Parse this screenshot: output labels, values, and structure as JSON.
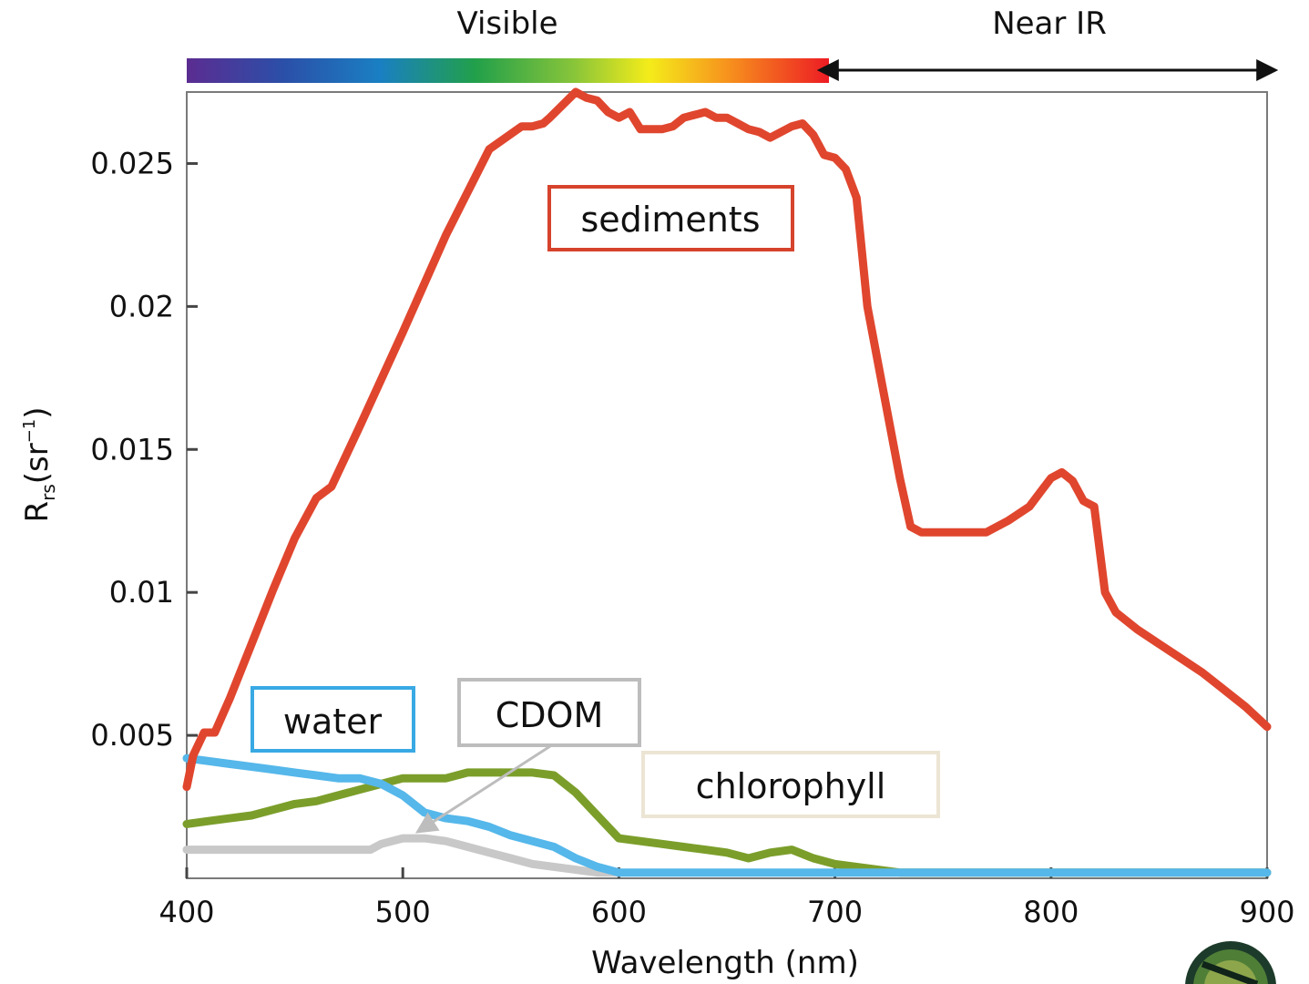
{
  "chart_data": {
    "type": "line",
    "xlabel": "Wavelength (nm)",
    "ylabel": {
      "main": "R",
      "sub": "rs",
      "unit_open": "(sr",
      "sup": "−1",
      "unit_close": ")"
    },
    "xlim": [
      400,
      900
    ],
    "ylim": [
      0,
      0.0275
    ],
    "x_ticks": [
      400,
      500,
      600,
      700,
      800,
      900
    ],
    "x_tick_labels": [
      "400",
      "500",
      "600",
      "700",
      "800",
      "900"
    ],
    "y_ticks": [
      0.005,
      0.01,
      0.015,
      0.02,
      0.025
    ],
    "y_tick_labels": [
      "0.005",
      "0.01",
      "0.015",
      "0.02",
      "0.025"
    ],
    "grid": false,
    "spectrum_band": {
      "label": "Visible",
      "from": 400,
      "to": 697
    },
    "nir_band": {
      "label": "Near IR",
      "from": 697,
      "to": 900
    },
    "series": [
      {
        "name": "sediments",
        "color": "#e0462e",
        "label_border": "#d6432c",
        "x": [
          400,
          403,
          408,
          413,
          420,
          430,
          440,
          450,
          460,
          467,
          480,
          500,
          520,
          540,
          555,
          560,
          565,
          568,
          572,
          580,
          585,
          590,
          595,
          600,
          605,
          610,
          615,
          620,
          625,
          630,
          640,
          645,
          650,
          655,
          660,
          665,
          670,
          680,
          685,
          690,
          695,
          700,
          705,
          710,
          715,
          720,
          725,
          730,
          735,
          740,
          745,
          750,
          760,
          770,
          780,
          790,
          795,
          800,
          805,
          810,
          815,
          820,
          825,
          830,
          840,
          850,
          860,
          870,
          880,
          890,
          900
        ],
        "y": [
          0.0032,
          0.0043,
          0.0051,
          0.0051,
          0.0063,
          0.0082,
          0.0101,
          0.0119,
          0.0133,
          0.0137,
          0.0158,
          0.0191,
          0.0225,
          0.0255,
          0.0263,
          0.0263,
          0.0264,
          0.0266,
          0.0269,
          0.0275,
          0.0273,
          0.0272,
          0.0268,
          0.0266,
          0.0268,
          0.0262,
          0.0262,
          0.0262,
          0.0263,
          0.0266,
          0.0268,
          0.0266,
          0.0266,
          0.0264,
          0.0262,
          0.0261,
          0.0259,
          0.0263,
          0.0264,
          0.026,
          0.0253,
          0.0252,
          0.0248,
          0.0238,
          0.02,
          0.018,
          0.016,
          0.014,
          0.0123,
          0.0121,
          0.0121,
          0.0121,
          0.0121,
          0.0121,
          0.0125,
          0.013,
          0.0135,
          0.014,
          0.0142,
          0.0139,
          0.0132,
          0.013,
          0.01,
          0.0093,
          0.0087,
          0.0082,
          0.0077,
          0.0072,
          0.0066,
          0.006,
          0.0053
        ]
      },
      {
        "name": "water",
        "color": "#55b7ea",
        "label_border": "#39a9e4",
        "x": [
          400,
          410,
          420,
          430,
          440,
          450,
          460,
          470,
          480,
          490,
          500,
          510,
          520,
          530,
          540,
          550,
          560,
          570,
          580,
          590,
          600,
          620,
          640,
          700,
          800,
          900
        ],
        "y": [
          0.0042,
          0.0041,
          0.004,
          0.0039,
          0.0038,
          0.0037,
          0.0036,
          0.0035,
          0.0035,
          0.0033,
          0.0029,
          0.0023,
          0.0021,
          0.002,
          0.0018,
          0.0015,
          0.0013,
          0.0011,
          0.0007,
          0.0004,
          0.0002,
          0.0002,
          0.0002,
          0.0002,
          0.0002,
          0.0002
        ]
      },
      {
        "name": "chlorophyll",
        "color": "#7b9e2a",
        "label_border": "#ece5d4",
        "x": [
          400,
          410,
          420,
          430,
          440,
          450,
          460,
          470,
          480,
          490,
          500,
          510,
          520,
          530,
          540,
          550,
          560,
          570,
          580,
          590,
          600,
          610,
          620,
          630,
          640,
          650,
          660,
          670,
          680,
          690,
          700,
          710,
          720,
          730,
          750,
          800,
          900
        ],
        "y": [
          0.0019,
          0.002,
          0.0021,
          0.0022,
          0.0024,
          0.0026,
          0.0027,
          0.0029,
          0.0031,
          0.0033,
          0.0035,
          0.0035,
          0.0035,
          0.0037,
          0.0037,
          0.0037,
          0.0037,
          0.0036,
          0.003,
          0.0022,
          0.0014,
          0.0013,
          0.0012,
          0.0011,
          0.001,
          0.0009,
          0.0007,
          0.0009,
          0.001,
          0.0007,
          0.0005,
          0.0004,
          0.0003,
          0.0002,
          0.0002,
          0.0002,
          0.0002
        ]
      },
      {
        "name": "CDOM",
        "color": "#c8c8c8",
        "label_border": "#bdbdbd",
        "x": [
          400,
          420,
          440,
          460,
          480,
          485,
          490,
          495,
          500,
          505,
          510,
          520,
          530,
          540,
          550,
          560,
          570,
          580,
          590,
          600
        ],
        "y": [
          0.001,
          0.001,
          0.001,
          0.001,
          0.001,
          0.001,
          0.0012,
          0.0013,
          0.0014,
          0.0014,
          0.0014,
          0.0013,
          0.0011,
          0.0009,
          0.0007,
          0.0005,
          0.0004,
          0.0003,
          0.0002,
          0.0002
        ]
      }
    ],
    "annotations": [
      {
        "text": "sediments",
        "series": "sediments"
      },
      {
        "text": "water",
        "series": "water"
      },
      {
        "text": "CDOM",
        "series": "CDOM",
        "arrow": true
      },
      {
        "text": "chlorophyll",
        "series": "chlorophyll"
      }
    ]
  }
}
